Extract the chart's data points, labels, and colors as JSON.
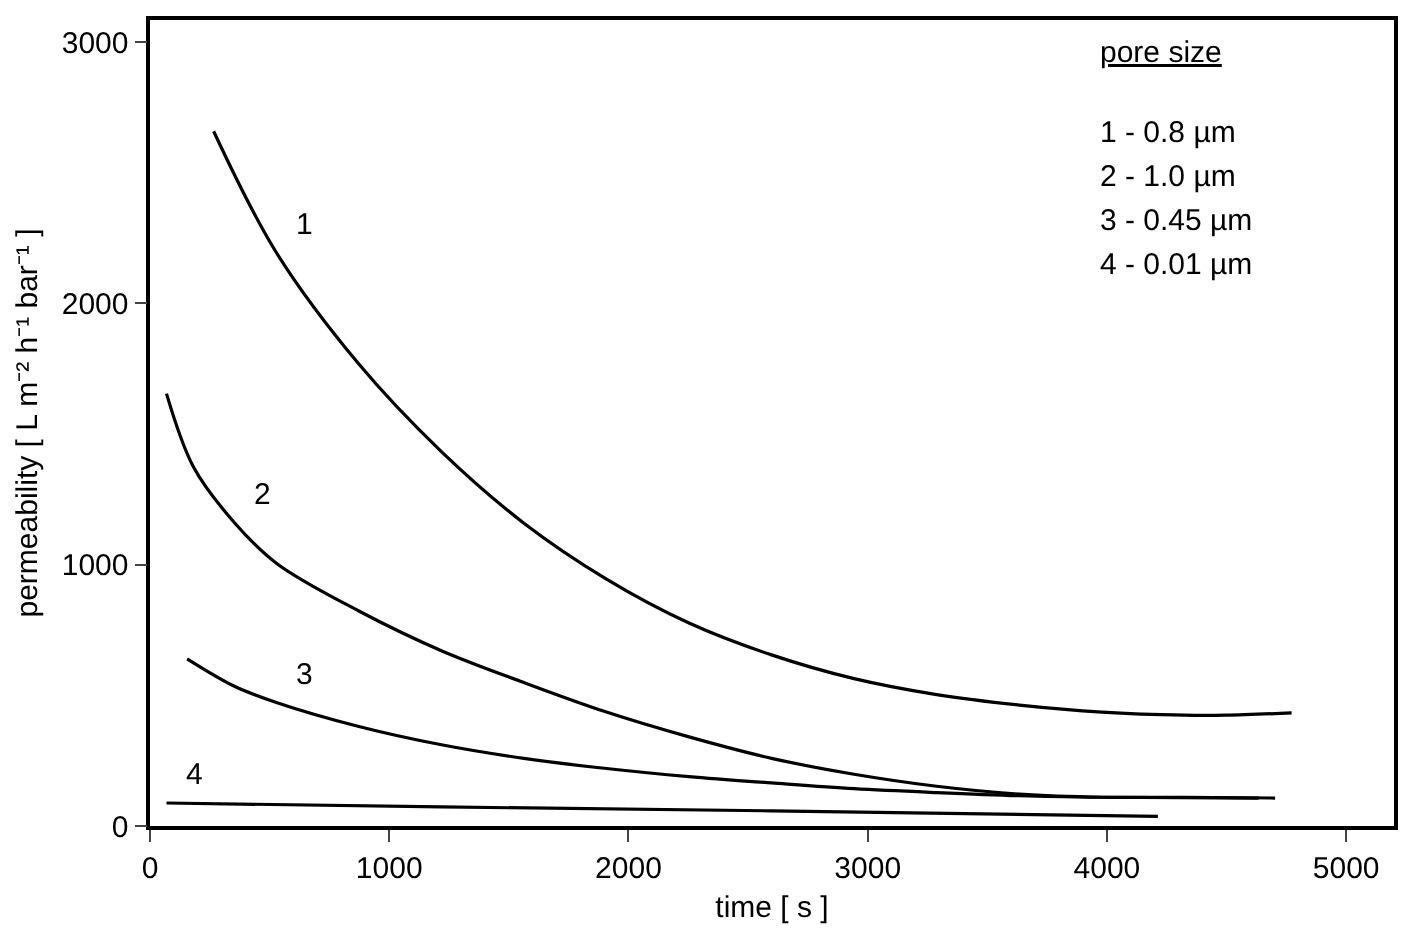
{
  "chart_data": {
    "type": "line",
    "xlabel": "time [ s ]",
    "ylabel": "permeability [ L m⁻² h⁻¹ bar⁻¹ ]",
    "xlim": [
      0,
      5200
    ],
    "ylim": [
      0,
      3085
    ],
    "xticks": [
      0,
      1000,
      2000,
      3000,
      4000,
      5000
    ],
    "yticks": [
      0,
      1000,
      2000,
      3000
    ],
    "grid": false,
    "legend": false,
    "marker": "none",
    "line_style": "solid",
    "series": [
      {
        "name": "1",
        "color": "#000000",
        "x": [
          266,
          528,
          873,
          1218,
          1563,
          1908,
          2253,
          2598,
          2943,
          3288,
          3634,
          3979,
          4324,
          4496,
          4772
        ],
        "values": [
          2659,
          2195,
          1768,
          1433,
          1159,
          945,
          777,
          655,
          564,
          503,
          463,
          436,
          424,
          424,
          433
        ]
      },
      {
        "name": "2",
        "color": "#000000",
        "x": [
          69,
          183,
          355,
          528,
          873,
          1218,
          1563,
          1908,
          2253,
          2598,
          2943,
          3288,
          3634,
          3979,
          4324,
          4703
        ],
        "values": [
          1655,
          1372,
          1159,
          1006,
          823,
          671,
          549,
          436,
          341,
          259,
          198,
          152,
          122,
          110,
          110,
          107
        ]
      },
      {
        "name": "3",
        "color": "#000000",
        "x": [
          155,
          355,
          528,
          873,
          1218,
          1563,
          1908,
          2253,
          2598,
          2943,
          3288,
          3634,
          3979,
          4634
        ],
        "values": [
          640,
          534,
          473,
          381,
          311,
          259,
          220,
          189,
          165,
          143,
          128,
          116,
          110,
          107
        ]
      },
      {
        "name": "4",
        "color": "#000000",
        "x": [
          69,
          1218,
          2598,
          4213
        ],
        "values": [
          88,
          73,
          58,
          37
        ]
      }
    ],
    "annotations": [
      "pore size",
      "1 - 0.8 µm",
      "2 - 1.0 µm",
      "3 - 0.45 µm",
      "4 - 0.01 µm"
    ]
  }
}
